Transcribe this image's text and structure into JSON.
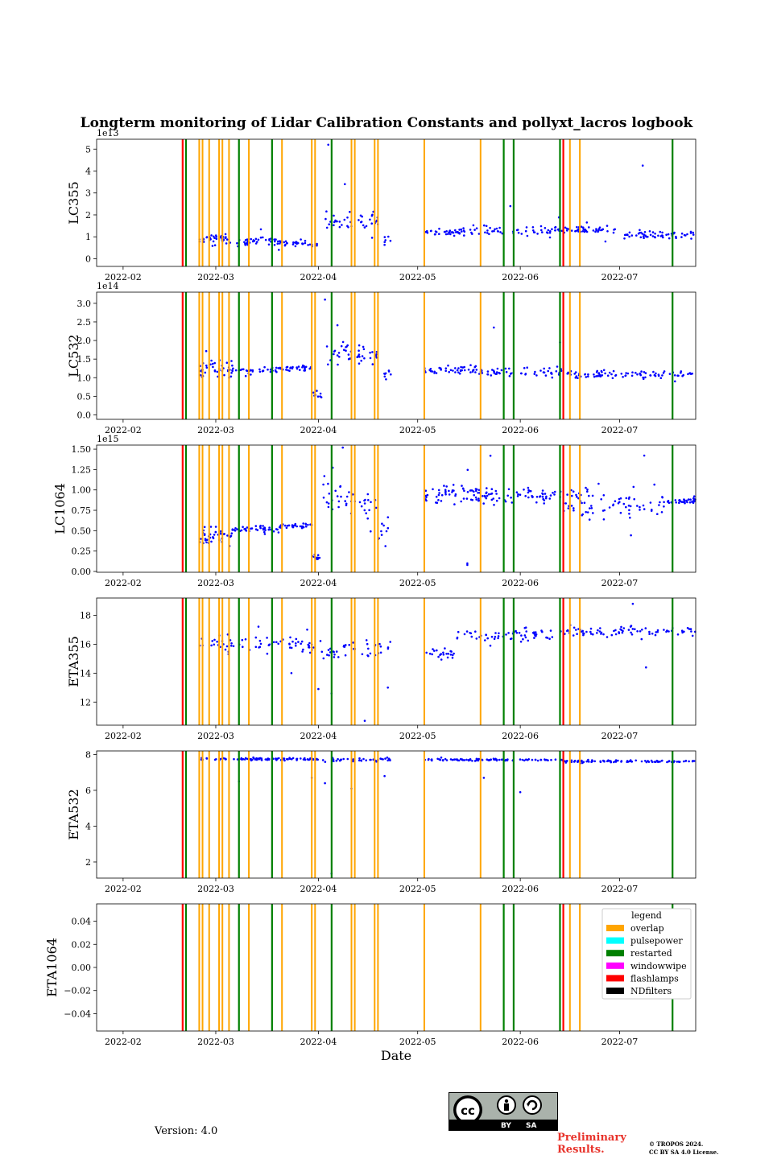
{
  "chart_data": {
    "type": "scatter",
    "title": "Longterm monitoring of Lidar Calibration Constants and pollyxt_lacros logbook",
    "xlabel": "Date",
    "xlim": [
      "2022-01-24",
      "2022-07-24"
    ],
    "xticks": [
      "2022-02",
      "2022-03",
      "2022-04",
      "2022-05",
      "2022-06",
      "2022-07"
    ],
    "xtick_dates": [
      "2022-02-01",
      "2022-03-01",
      "2022-04-01",
      "2022-05-01",
      "2022-06-01",
      "2022-07-01"
    ],
    "point_color": "#0000ff",
    "events": {
      "overlap": [
        "2022-02-19",
        "2022-02-24",
        "2022-02-25",
        "2022-02-27",
        "2022-03-02",
        "2022-03-03",
        "2022-03-05",
        "2022-03-11",
        "2022-03-21",
        "2022-03-30",
        "2022-03-31",
        "2022-04-11",
        "2022-04-12",
        "2022-04-18",
        "2022-04-19",
        "2022-05-03",
        "2022-05-20",
        "2022-06-14",
        "2022-06-16",
        "2022-06-19"
      ],
      "restarted": [
        "2022-02-20",
        "2022-03-08",
        "2022-03-18",
        "2022-04-05",
        "2022-05-27",
        "2022-05-30",
        "2022-06-13",
        "2022-07-17"
      ],
      "flashlamps": [
        "2022-02-19",
        "2022-06-14"
      ]
    },
    "legend": {
      "title": "legend",
      "placement": "upper-right",
      "entries": [
        {
          "label": "overlap",
          "color": "#ffa500"
        },
        {
          "label": "pulsepower",
          "color": "#00ffff"
        },
        {
          "label": "restarted",
          "color": "#008000"
        },
        {
          "label": "windowwipe",
          "color": "#ff00ff"
        },
        {
          "label": "flashlamps",
          "color": "#ff0000"
        },
        {
          "label": "NDfilters",
          "color": "#000000"
        }
      ]
    },
    "panels": [
      {
        "ylabel": "LC355",
        "offset_text": "1e13",
        "scale": 10000000000000.0,
        "ylim": [
          -0.35,
          5.45
        ],
        "yticks": [
          0,
          1,
          2,
          3,
          4,
          5
        ],
        "segments": [
          {
            "start": "2022-02-24",
            "end": "2022-03-06",
            "base": 0.9,
            "noise": 0.35,
            "count": 40
          },
          {
            "start": "2022-03-07",
            "end": "2022-03-20",
            "base": 0.8,
            "noise": 0.25,
            "count": 36
          },
          {
            "start": "2022-03-20",
            "end": "2022-04-01",
            "base": 0.7,
            "noise": 0.2,
            "count": 32
          },
          {
            "start": "2022-04-03",
            "end": "2022-04-19",
            "base": 1.7,
            "noise": 0.7,
            "count": 40
          },
          {
            "start": "2022-04-21",
            "end": "2022-04-23",
            "base": 0.9,
            "noise": 0.3,
            "count": 6
          },
          {
            "start": "2022-05-03",
            "end": "2022-05-21",
            "base": 1.2,
            "noise": 0.2,
            "count": 48
          },
          {
            "start": "2022-05-21",
            "end": "2022-06-14",
            "base": 1.3,
            "noise": 0.3,
            "count": 50
          },
          {
            "start": "2022-06-14",
            "end": "2022-06-30",
            "base": 1.3,
            "noise": 0.25,
            "count": 42
          },
          {
            "start": "2022-06-30",
            "end": "2022-07-24",
            "base": 1.1,
            "noise": 0.25,
            "count": 56
          }
        ],
        "extras": [
          [
            "2022-04-04",
            5.2
          ],
          [
            "2022-07-08",
            4.25
          ],
          [
            "2022-04-09",
            3.4
          ],
          [
            "2022-05-29",
            2.4
          ]
        ]
      },
      {
        "ylabel": "LC532",
        "offset_text": "1e14",
        "scale": 100000000000000.0,
        "ylim": [
          -0.12,
          3.3
        ],
        "yticks": [
          0.0,
          0.5,
          1.0,
          1.5,
          2.0,
          2.5,
          3.0
        ],
        "segments": [
          {
            "start": "2022-02-24",
            "end": "2022-03-06",
            "base": 1.25,
            "noise": 0.35,
            "count": 40
          },
          {
            "start": "2022-03-06",
            "end": "2022-03-20",
            "base": 1.2,
            "noise": 0.12,
            "count": 36
          },
          {
            "start": "2022-03-20",
            "end": "2022-03-30",
            "base": 1.25,
            "noise": 0.12,
            "count": 30
          },
          {
            "start": "2022-03-30",
            "end": "2022-04-02",
            "base": 0.5,
            "noise": 0.4,
            "count": 8
          },
          {
            "start": "2022-04-03",
            "end": "2022-04-19",
            "base": 1.6,
            "noise": 0.5,
            "count": 44
          },
          {
            "start": "2022-04-20",
            "end": "2022-04-23",
            "base": 1.1,
            "noise": 0.3,
            "count": 8
          },
          {
            "start": "2022-05-03",
            "end": "2022-05-21",
            "base": 1.2,
            "noise": 0.18,
            "count": 48
          },
          {
            "start": "2022-05-21",
            "end": "2022-06-14",
            "base": 1.15,
            "noise": 0.2,
            "count": 50
          },
          {
            "start": "2022-06-14",
            "end": "2022-07-24",
            "base": 1.08,
            "noise": 0.15,
            "count": 90
          }
        ],
        "extras": [
          [
            "2022-04-03",
            3.1
          ],
          [
            "2022-05-24",
            2.35
          ],
          [
            "2022-06-13",
            1.95
          ]
        ]
      },
      {
        "ylabel": "LC1064",
        "offset_text": "1e15",
        "scale": 1000000000000000.0,
        "ylim": [
          -0.01,
          1.55
        ],
        "yticks": [
          0.0,
          0.25,
          0.5,
          0.75,
          1.0,
          1.25,
          1.5
        ],
        "segments": [
          {
            "start": "2022-02-24",
            "end": "2022-03-06",
            "base": 0.45,
            "noise": 0.2,
            "count": 40
          },
          {
            "start": "2022-03-06",
            "end": "2022-03-20",
            "base": 0.52,
            "noise": 0.05,
            "count": 40
          },
          {
            "start": "2022-03-20",
            "end": "2022-03-30",
            "base": 0.56,
            "noise": 0.04,
            "count": 30
          },
          {
            "start": "2022-03-30",
            "end": "2022-04-02",
            "base": 0.18,
            "noise": 0.05,
            "count": 10
          },
          {
            "start": "2022-04-02",
            "end": "2022-04-19",
            "base": 0.9,
            "noise": 0.3,
            "count": 44
          },
          {
            "start": "2022-04-19",
            "end": "2022-04-23",
            "base": 0.45,
            "noise": 0.3,
            "count": 10
          },
          {
            "start": "2022-05-03",
            "end": "2022-05-21",
            "base": 0.95,
            "noise": 0.18,
            "count": 60
          },
          {
            "start": "2022-05-21",
            "end": "2022-06-14",
            "base": 0.93,
            "noise": 0.15,
            "count": 60
          },
          {
            "start": "2022-06-14",
            "end": "2022-07-15",
            "base": 0.85,
            "noise": 0.3,
            "count": 80
          },
          {
            "start": "2022-07-15",
            "end": "2022-07-24",
            "base": 0.87,
            "noise": 0.05,
            "count": 30
          }
        ],
        "extras": [
          [
            "2022-05-16",
            0.1
          ],
          [
            "2022-05-16",
            0.08
          ],
          [
            "2022-05-23",
            1.42
          ]
        ]
      },
      {
        "ylabel": "ETA355",
        "offset_text": "",
        "scale": 1,
        "ylim": [
          10.4,
          19.2
        ],
        "yticks": [
          12,
          14,
          16,
          18
        ],
        "segments": [
          {
            "start": "2022-02-24",
            "end": "2022-04-01",
            "base": 16.0,
            "noise": 0.9,
            "count": 70
          },
          {
            "start": "2022-04-01",
            "end": "2022-04-23",
            "base": 15.6,
            "noise": 1.0,
            "count": 40
          },
          {
            "start": "2022-05-03",
            "end": "2022-05-12",
            "base": 15.3,
            "noise": 0.6,
            "count": 22
          },
          {
            "start": "2022-05-12",
            "end": "2022-06-14",
            "base": 16.7,
            "noise": 0.6,
            "count": 60
          },
          {
            "start": "2022-06-14",
            "end": "2022-07-24",
            "base": 16.9,
            "noise": 0.5,
            "count": 80
          }
        ],
        "extras": [
          [
            "2022-04-01",
            12.9
          ],
          [
            "2022-04-05",
            12.6
          ],
          [
            "2022-04-15",
            10.7
          ],
          [
            "2022-04-22",
            13.0
          ],
          [
            "2022-07-05",
            18.8
          ],
          [
            "2022-07-09",
            14.4
          ]
        ]
      },
      {
        "ylabel": "ETA532",
        "offset_text": "",
        "scale": 1,
        "ylim": [
          1.1,
          8.2
        ],
        "yticks": [
          2,
          4,
          6,
          8
        ],
        "segments": [
          {
            "start": "2022-02-24",
            "end": "2022-04-01",
            "base": 7.75,
            "noise": 0.12,
            "count": 90
          },
          {
            "start": "2022-04-01",
            "end": "2022-04-23",
            "base": 7.7,
            "noise": 0.15,
            "count": 40
          },
          {
            "start": "2022-05-03",
            "end": "2022-06-14",
            "base": 7.7,
            "noise": 0.08,
            "count": 90
          },
          {
            "start": "2022-06-14",
            "end": "2022-07-24",
            "base": 7.62,
            "noise": 0.08,
            "count": 90
          }
        ],
        "extras": [
          [
            "2022-03-08",
            6.5
          ],
          [
            "2022-03-30",
            6.7
          ],
          [
            "2022-04-03",
            6.4
          ],
          [
            "2022-04-11",
            6.1
          ],
          [
            "2022-05-21",
            6.7
          ],
          [
            "2022-06-01",
            5.9
          ],
          [
            "2022-04-05",
            1.35
          ],
          [
            "2022-04-21",
            6.8
          ]
        ]
      },
      {
        "ylabel": "ETA1064",
        "offset_text": "",
        "scale": 1,
        "ylim": [
          -0.055,
          0.055
        ],
        "yticks": [
          -0.04,
          -0.02,
          0.0,
          0.02,
          0.04
        ],
        "ytick_labels": [
          "−0.04",
          "−0.02",
          "0.00",
          "0.02",
          "0.04"
        ],
        "segments": [],
        "extras": [],
        "show_legend": true
      }
    ]
  },
  "footer": {
    "version": "Version: 4.0",
    "cc_by": "BY",
    "cc_sa": "SA",
    "preliminary": "Preliminary Results.",
    "copyright_line1": "© TROPOS 2024.",
    "copyright_line2": "CC BY SA 4.0 License."
  }
}
